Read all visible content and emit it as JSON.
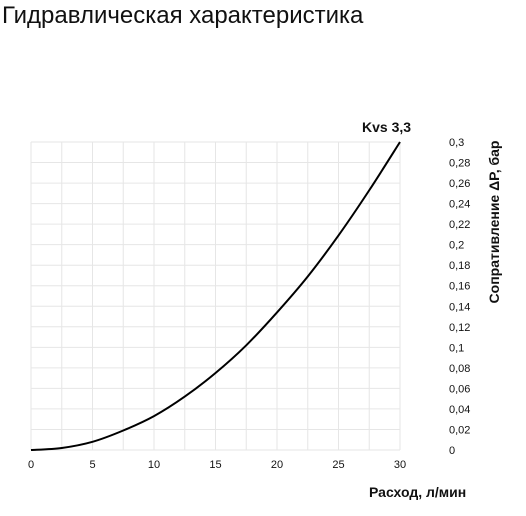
{
  "page": {
    "title": "Гидравлическая характеристика"
  },
  "chart_data": {
    "type": "line",
    "title": "Гидравлическая характеристика",
    "xlabel": "Расход, л/мин",
    "ylabel": "Сопративление ΔP, бар",
    "xlim": [
      0,
      30
    ],
    "ylim": [
      0,
      0.3
    ],
    "x_ticks": [
      "0",
      "5",
      "10",
      "15",
      "20",
      "25",
      "30"
    ],
    "y_ticks": [
      "0",
      "0,02",
      "0,04",
      "0,06",
      "0,08",
      "0,1",
      "0,12",
      "0,14",
      "0,16",
      "0,18",
      "0,2",
      "0,22",
      "0,24",
      "0,26",
      "0,28",
      "0,3"
    ],
    "grid": true,
    "series": [
      {
        "name": "Kvs 3,3",
        "x": [
          0,
          2.5,
          5,
          7.5,
          10,
          12.5,
          15,
          17.5,
          20,
          22.5,
          25,
          27.5,
          30
        ],
        "y": [
          0,
          0.002,
          0.008,
          0.019,
          0.033,
          0.052,
          0.075,
          0.102,
          0.134,
          0.169,
          0.209,
          0.253,
          0.3
        ]
      }
    ]
  }
}
